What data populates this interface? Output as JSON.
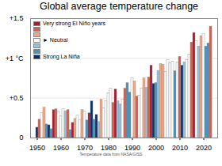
{
  "chart_data": {
    "type": "bar",
    "title": "Global average temperature change",
    "caption": "Temperature data from NASA/GISS",
    "x": [
      1950,
      1951,
      1952,
      1953,
      1954,
      1955,
      1956,
      1957,
      1958,
      1959,
      1960,
      1961,
      1962,
      1963,
      1964,
      1965,
      1966,
      1967,
      1968,
      1969,
      1970,
      1971,
      1972,
      1973,
      1974,
      1975,
      1976,
      1977,
      1978,
      1979,
      1980,
      1981,
      1982,
      1983,
      1984,
      1985,
      1986,
      1987,
      1988,
      1989,
      1990,
      1991,
      1992,
      1993,
      1994,
      1995,
      1996,
      1997,
      1998,
      1999,
      2000,
      2001,
      2002,
      2003,
      2004,
      2005,
      2006,
      2007,
      2008,
      2009,
      2010,
      2011,
      2012,
      2013,
      2014,
      2015,
      2016,
      2017,
      2018,
      2019,
      2020,
      2021,
      2022,
      2023
    ],
    "values": [
      0.13,
      0.23,
      0.31,
      0.38,
      0.17,
      0.16,
      0.11,
      0.35,
      0.36,
      0.33,
      0.27,
      0.36,
      0.33,
      0.35,
      0.1,
      0.19,
      0.24,
      0.28,
      0.22,
      0.35,
      0.33,
      0.22,
      0.31,
      0.46,
      0.23,
      0.29,
      0.2,
      0.48,
      0.37,
      0.46,
      0.56,
      0.62,
      0.44,
      0.61,
      0.46,
      0.42,
      0.48,
      0.62,
      0.69,
      0.57,
      0.75,
      0.71,
      0.52,
      0.53,
      0.62,
      0.75,
      0.63,
      0.76,
      0.91,
      0.68,
      0.69,
      0.84,
      0.93,
      0.92,
      0.83,
      0.98,
      0.94,
      0.96,
      0.84,
      0.95,
      1.02,
      0.91,
      0.95,
      0.98,
      1.05,
      1.2,
      1.32,
      1.22,
      1.15,
      1.28,
      1.31,
      1.15,
      1.19,
      1.4
    ],
    "colors": [
      "#08306b",
      "#d6604d",
      "#ffffff",
      "#f4a582",
      "#4393c3",
      "#08306b",
      "#4393c3",
      "#b2182b",
      "#d6604d",
      "#ffffff",
      "#ffffff",
      "#ffffff",
      "#92c5de",
      "#d6604d",
      "#4393c3",
      "#b2182b",
      "#f4a582",
      "#ffffff",
      "#ffffff",
      "#f4a582",
      "#ffffff",
      "#4393c3",
      "#b2182b",
      "#08306b",
      "#4393c3",
      "#08306b",
      "#92c5de",
      "#f4a582",
      "#ffffff",
      "#ffffff",
      "#ffffff",
      "#ffffff",
      "#d6604d",
      "#b2182b",
      "#92c5de",
      "#92c5de",
      "#ffffff",
      "#d6604d",
      "#4393c3",
      "#4393c3",
      "#ffffff",
      "#f4a582",
      "#d6604d",
      "#ffffff",
      "#ffffff",
      "#f4a582",
      "#92c5de",
      "#d6604d",
      "#b2182b",
      "#08306b",
      "#4393c3",
      "#92c5de",
      "#f4a582",
      "#f4a582",
      "#ffffff",
      "#ffffff",
      "#ffffff",
      "#ffffff",
      "#4393c3",
      "#ffffff",
      "#d6604d",
      "#08306b",
      "#92c5de",
      "#ffffff",
      "#ffffff",
      "#d6604d",
      "#b2182b",
      "#ffffff",
      "#92c5de",
      "#f4a582",
      "#ffffff",
      "#4393c3",
      "#4393c3",
      "#d6604d"
    ],
    "xticks": [
      1950,
      1960,
      1970,
      1980,
      1990,
      2000,
      2010,
      2020
    ],
    "ylim": [
      0,
      1.5
    ],
    "yticks": [
      0,
      {
        "value": 0.5,
        "label": "+0.5"
      },
      {
        "value": 1,
        "label": "+1 °C"
      },
      {
        "value": 1.5,
        "label": "+1.5"
      }
    ],
    "grid": true,
    "legend": "top-left",
    "legend_entries": [
      {
        "color": "#b2182b",
        "label": "Very strong El Niño years"
      },
      {
        "color": "#d6604d",
        "label": null
      },
      {
        "color": "#f4a582",
        "label": null
      },
      {
        "color": "#ffffff",
        "label": "► Neutral"
      },
      {
        "color": "#92c5de",
        "label": null
      },
      {
        "color": "#4393c3",
        "label": null
      },
      {
        "color": "#08306b",
        "label": "Strong La Niña"
      }
    ]
  }
}
